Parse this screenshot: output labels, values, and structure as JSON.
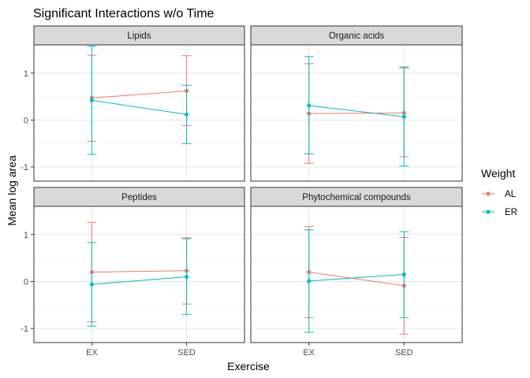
{
  "chart_data": {
    "type": "line",
    "title": "Significant Interactions w/o Time",
    "xlabel": "Exercise",
    "ylabel": "Mean log area",
    "categories": [
      "EX",
      "SED"
    ],
    "y_ticks": [
      "-1",
      "0",
      "1"
    ],
    "ylim": [
      -1.3,
      1.6
    ],
    "grid": true,
    "legend": {
      "title": "Weight",
      "placement": "right",
      "entries": [
        {
          "label": "AL",
          "color": "#F8766D"
        },
        {
          "label": "ER",
          "color": "#00BFC4"
        }
      ]
    },
    "panels": [
      {
        "name": "Lipids",
        "series": [
          {
            "name": "AL",
            "values": [
              0.47,
              0.62
            ],
            "lower": [
              -0.45,
              -0.12
            ],
            "upper": [
              1.38,
              1.37
            ]
          },
          {
            "name": "ER",
            "values": [
              0.42,
              0.12
            ],
            "lower": [
              -0.73,
              -0.5
            ],
            "upper": [
              1.57,
              0.74
            ]
          }
        ]
      },
      {
        "name": "Organic acids",
        "series": [
          {
            "name": "AL",
            "values": [
              0.14,
              0.15
            ],
            "lower": [
              -0.92,
              -0.78
            ],
            "upper": [
              1.2,
              1.11
            ]
          },
          {
            "name": "ER",
            "values": [
              0.31,
              0.07
            ],
            "lower": [
              -0.72,
              -0.98
            ],
            "upper": [
              1.35,
              1.13
            ]
          }
        ]
      },
      {
        "name": "Peptides",
        "series": [
          {
            "name": "AL",
            "values": [
              0.2,
              0.23
            ],
            "lower": [
              -0.86,
              -0.48
            ],
            "upper": [
              1.26,
              0.93
            ]
          },
          {
            "name": "ER",
            "values": [
              -0.06,
              0.1
            ],
            "lower": [
              -0.95,
              -0.7
            ],
            "upper": [
              0.83,
              0.91
            ]
          }
        ]
      },
      {
        "name": "Phytochemical compounds",
        "series": [
          {
            "name": "AL",
            "values": [
              0.2,
              -0.09
            ],
            "lower": [
              -0.77,
              -1.12
            ],
            "upper": [
              1.17,
              0.94
            ]
          },
          {
            "name": "ER",
            "values": [
              0.01,
              0.15
            ],
            "lower": [
              -1.08,
              -0.77
            ],
            "upper": [
              1.1,
              1.06
            ]
          }
        ]
      }
    ]
  }
}
